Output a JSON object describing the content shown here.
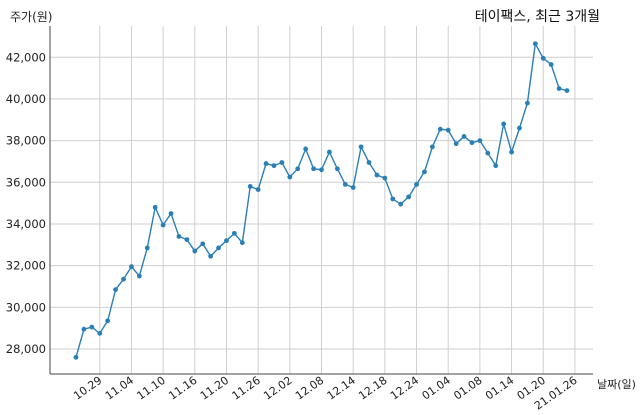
{
  "chart_data": {
    "type": "line",
    "title": "테이팩스, 최근 3개월",
    "ylabel": "주가(원)",
    "xlabel": "날짜(일)",
    "ylim": [
      26800,
      43500
    ],
    "yticks": [
      28000,
      30000,
      32000,
      34000,
      36000,
      38000,
      40000,
      42000
    ],
    "ytick_labels": [
      "28,000",
      "30,000",
      "32,000",
      "34,000",
      "36,000",
      "38,000",
      "40,000",
      "42,000"
    ],
    "xtick_labels": [
      {
        "label": "10.29",
        "index": 3
      },
      {
        "label": "11.04",
        "index": 7
      },
      {
        "label": "11.10",
        "index": 11
      },
      {
        "label": "11.16",
        "index": 15
      },
      {
        "label": "11.20",
        "index": 19
      },
      {
        "label": "11.26",
        "index": 23
      },
      {
        "label": "12.02",
        "index": 27
      },
      {
        "label": "12.08",
        "index": 31
      },
      {
        "label": "12.14",
        "index": 35
      },
      {
        "label": "12.18",
        "index": 39
      },
      {
        "label": "12.24",
        "index": 43
      },
      {
        "label": "01.04",
        "index": 47
      },
      {
        "label": "01.08",
        "index": 51
      },
      {
        "label": "01.14",
        "index": 55
      },
      {
        "label": "01.20",
        "index": 59
      },
      {
        "label": "21.01.26",
        "index": 63
      }
    ],
    "grid": true,
    "line_color": "#2a7fb5",
    "series": [
      {
        "values": [
          27600,
          28950,
          29050,
          28750,
          29350,
          30850,
          31350,
          31950,
          31500,
          32850,
          34800,
          33950,
          34500,
          33400,
          33250,
          32700,
          33050,
          32450,
          32850,
          33200,
          33550,
          33100,
          35800,
          35650,
          36900,
          36800,
          36950,
          36250,
          36650,
          37600,
          36650,
          36600,
          37450,
          36650,
          35900,
          35750,
          37700,
          36950,
          36350,
          36200,
          35200,
          34950,
          35300,
          35900,
          36500,
          37700,
          38550,
          38500,
          37850,
          38200,
          37900,
          38000,
          37400,
          36800,
          38800,
          37450,
          38600,
          39800,
          42650,
          41950,
          41650,
          40500,
          40400
        ]
      }
    ]
  }
}
